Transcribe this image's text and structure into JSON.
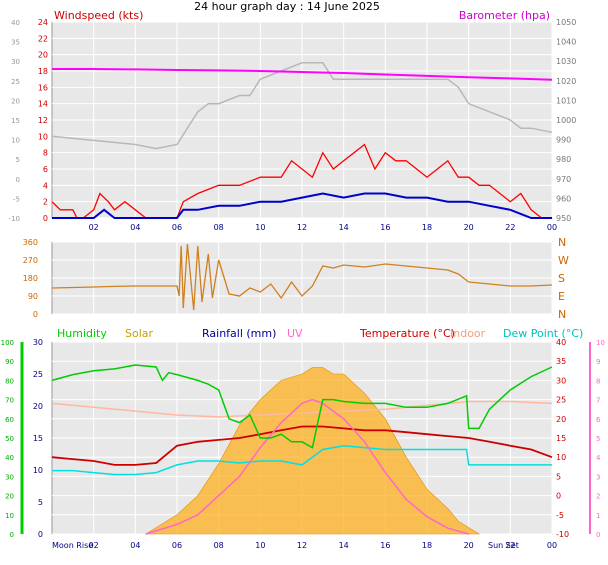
{
  "title": "24 hour graph day : 14 June 2025",
  "colors": {
    "windspeed": "#ff0000",
    "windavg": "#0000cc",
    "barometer": "#ff00ff",
    "outline": "#b8b8b8",
    "winddir": "#d08020",
    "humidity": "#00cc00",
    "solar": "#ffb020",
    "rainfall": "#000099",
    "uv": "#ff66cc",
    "temperature": "#cc0000",
    "indoor": "#ffb8a0",
    "dewpoint": "#00e0e0",
    "grid": "#ffffff",
    "plotbg": "#e8e8e8",
    "marker": "#ff9999"
  },
  "chart_data": [
    {
      "type": "line",
      "name": "wind-barometer",
      "x_ticks": [
        "02",
        "04",
        "06",
        "08",
        "10",
        "12",
        "14",
        "16",
        "18",
        "20",
        "22",
        "00"
      ],
      "xlim": [
        0,
        24
      ],
      "labels": {
        "left": "Windspeed (kts)",
        "right": "Barometer (hpa)"
      },
      "y_left_ticks": [
        "0",
        "2",
        "4",
        "6",
        "8",
        "10",
        "12",
        "14",
        "16",
        "18",
        "20",
        "22",
        "24"
      ],
      "y_left_range": [
        0,
        24
      ],
      "y_outer_ticks": [
        "-10",
        "-5",
        "0",
        "5",
        "10",
        "15",
        "20",
        "25",
        "30",
        "35",
        "40"
      ],
      "y_right_ticks": [
        "950",
        "960",
        "970",
        "980",
        "990",
        "1000",
        "1010",
        "1020",
        "1030",
        "1040",
        "1050"
      ],
      "y_right_range": [
        950,
        1050
      ],
      "series": [
        {
          "key": "wind_gust",
          "x": [
            0,
            0.4,
            1,
            1.2,
            1.5,
            2,
            2.3,
            2.7,
            3,
            3.5,
            4,
            4.5,
            5,
            5.5,
            6,
            6.3,
            7,
            8,
            9,
            10,
            11,
            11.5,
            12,
            12.5,
            13,
            13.5,
            14,
            14.5,
            15,
            15.5,
            16,
            16.5,
            17,
            17.5,
            18,
            18.5,
            19,
            19.5,
            20,
            20.5,
            21,
            21.5,
            22,
            22.5,
            23,
            23.5,
            24
          ],
          "y": [
            2,
            1,
            1,
            0,
            0,
            1,
            3,
            2,
            1,
            2,
            1,
            0,
            0,
            0,
            0,
            2,
            3,
            4,
            4,
            5,
            5,
            7,
            6,
            5,
            8,
            6,
            7,
            8,
            9,
            6,
            8,
            7,
            7,
            6,
            5,
            6,
            7,
            5,
            5,
            4,
            4,
            3,
            2,
            3,
            1,
            0,
            0
          ]
        },
        {
          "key": "wind_avg",
          "x": [
            0,
            1,
            2,
            2.5,
            3,
            4,
            5,
            6,
            6.3,
            7,
            8,
            9,
            10,
            11,
            12,
            13,
            14,
            15,
            16,
            17,
            18,
            19,
            20,
            21,
            22,
            22.5,
            23,
            24
          ],
          "y": [
            0,
            0,
            0,
            1,
            0,
            0,
            0,
            0,
            1,
            1,
            1.5,
            1.5,
            2,
            2,
            2.5,
            3,
            2.5,
            3,
            3,
            2.5,
            2.5,
            2,
            2,
            1.5,
            1,
            0.5,
            0,
            0
          ]
        },
        {
          "key": "barometer",
          "x": [
            0,
            2,
            4,
            6,
            8,
            10,
            12,
            14,
            16,
            18,
            20,
            22,
            24
          ],
          "y": [
            1026,
            1026,
            1025.8,
            1025.5,
            1025.3,
            1025,
            1024.5,
            1024,
            1023.2,
            1022.5,
            1021.8,
            1021.2,
            1020.5
          ]
        },
        {
          "key": "outline",
          "x": [
            0,
            2,
            4,
            5,
            6,
            7,
            7.5,
            8,
            9,
            9.5,
            10,
            11,
            12,
            12.5,
            13,
            13.5,
            14,
            15,
            16,
            17,
            18,
            19,
            19.5,
            20,
            21,
            22,
            22.5,
            23,
            24
          ],
          "y": [
            10,
            9.5,
            9,
            8.5,
            9,
            13,
            14,
            14,
            15,
            15,
            17,
            18,
            19,
            19,
            19,
            17,
            17,
            17,
            17,
            17,
            17,
            17,
            16,
            14,
            13,
            12,
            11,
            11,
            10.5
          ]
        }
      ]
    },
    {
      "type": "line",
      "name": "wind-direction",
      "xlim": [
        0,
        24
      ],
      "y_ticks": [
        "0",
        "90",
        "180",
        "270",
        "360"
      ],
      "ylim": [
        0,
        360
      ],
      "compass": [
        "N",
        "W",
        "S",
        "E",
        "N"
      ],
      "series": [
        {
          "key": "direction",
          "x": [
            0,
            2,
            3,
            4,
            5,
            6,
            6.1,
            6.2,
            6.3,
            6.5,
            6.8,
            7,
            7.2,
            7.5,
            7.7,
            8,
            8.5,
            9,
            9.5,
            10,
            10.5,
            11,
            11.5,
            12,
            12.5,
            13,
            13.5,
            14,
            15,
            16,
            17,
            18,
            19,
            19.5,
            20,
            21,
            22,
            23,
            24
          ],
          "y": [
            130,
            135,
            138,
            140,
            140,
            140,
            90,
            340,
            30,
            350,
            20,
            340,
            60,
            300,
            80,
            270,
            100,
            90,
            130,
            110,
            150,
            80,
            160,
            90,
            140,
            240,
            230,
            245,
            235,
            250,
            240,
            230,
            220,
            200,
            160,
            150,
            140,
            140,
            145
          ]
        }
      ]
    },
    {
      "type": "line",
      "name": "temp-humidity",
      "xlim": [
        0,
        24
      ],
      "x_ticks": [
        "02",
        "04",
        "06",
        "08",
        "10",
        "12",
        "14",
        "16",
        "18",
        "20",
        "22",
        "00"
      ],
      "labels": {
        "humidity": "Humidity",
        "solar": "Solar",
        "rainfall": "Rainfall (mm)",
        "uv": "UV",
        "temperature": "Temperature (°C)",
        "indoor": "Indoor",
        "dewpoint": "Dew Point (°C)"
      },
      "bottom_labels": {
        "moonrise": "Moon Rise",
        "sunset": "Sun Set"
      },
      "y_humidity_ticks": [
        "0",
        "10",
        "20",
        "30",
        "40",
        "50",
        "60",
        "70",
        "80",
        "90",
        "100"
      ],
      "y_rain_ticks": [
        "0",
        "5",
        "10",
        "15",
        "20",
        "25",
        "30"
      ],
      "y_temp_ticks": [
        "-10",
        "-5",
        "0",
        "5",
        "10",
        "15",
        "20",
        "25",
        "30",
        "35",
        "40"
      ],
      "y_uv_ticks": [
        "0",
        "1",
        "2",
        "3",
        "4",
        "5",
        "6",
        "7",
        "8",
        "9",
        "10"
      ],
      "series": [
        {
          "key": "humidity",
          "x": [
            0,
            1,
            2,
            3,
            4,
            5,
            5.3,
            5.6,
            6,
            7,
            7.5,
            8,
            8.5,
            9,
            9.5,
            10,
            10.5,
            11,
            11.5,
            12,
            12.5,
            13,
            13.5,
            14,
            15,
            16,
            17,
            18,
            19,
            19.9,
            20,
            20.5,
            21,
            22,
            23,
            24
          ],
          "y": [
            80,
            83,
            85,
            86,
            88,
            87,
            80,
            84,
            83,
            80,
            78,
            75,
            60,
            58,
            62,
            50,
            50,
            52,
            48,
            48,
            45,
            70,
            70,
            69,
            68,
            68,
            66,
            66,
            68,
            72,
            55,
            55,
            65,
            75,
            82,
            87
          ]
        },
        {
          "key": "temperature",
          "x": [
            0,
            1,
            2,
            3,
            4,
            5,
            6,
            7,
            8,
            9,
            10,
            11,
            12,
            13,
            14,
            15,
            16,
            17,
            18,
            19,
            20,
            21,
            22,
            23,
            24
          ],
          "y": [
            10,
            9.5,
            9,
            8,
            8,
            8.5,
            13,
            14,
            14.5,
            15,
            16,
            17,
            18,
            18,
            17.5,
            17,
            17,
            16.5,
            16,
            15.5,
            15,
            14,
            13,
            12,
            10
          ]
        },
        {
          "key": "dewpoint",
          "x": [
            0,
            1,
            2,
            3,
            4,
            5,
            6,
            7,
            8,
            9,
            10,
            11,
            12,
            13,
            14,
            15,
            16,
            17,
            18,
            19,
            19.9,
            20,
            21,
            22,
            23,
            24
          ],
          "y": [
            6.5,
            6.5,
            6,
            5.5,
            5.5,
            6,
            8,
            9,
            9,
            8.5,
            9,
            9,
            8,
            12,
            13,
            12.5,
            12,
            12,
            12,
            12,
            12,
            8,
            8,
            8,
            8,
            8
          ]
        },
        {
          "key": "indoor",
          "x": [
            0,
            2,
            4,
            6,
            8,
            10,
            12,
            14,
            16,
            18,
            20,
            22,
            24
          ],
          "y": [
            24,
            23,
            22,
            21,
            20.5,
            21,
            21.5,
            22,
            22.5,
            23.5,
            24.5,
            24.5,
            24
          ]
        },
        {
          "key": "solar",
          "x": [
            4.5,
            5,
            6,
            7,
            8,
            9,
            10,
            11,
            12,
            12.5,
            13,
            13.5,
            14,
            15,
            16,
            17,
            18,
            19,
            19.5,
            20,
            20.5
          ],
          "y": [
            0,
            1,
            3,
            6,
            11,
            17,
            21,
            24,
            25,
            26,
            26,
            25,
            25,
            22,
            18,
            12,
            7,
            4,
            2,
            1,
            0
          ]
        },
        {
          "key": "uv",
          "x": [
            4.5,
            6,
            7,
            8,
            9,
            10,
            11,
            12,
            12.5,
            13,
            14,
            15,
            16,
            17,
            18,
            19,
            20
          ],
          "y": [
            0,
            0.5,
            1,
            2,
            3,
            4.5,
            5.8,
            6.8,
            7,
            6.8,
            6,
            4.8,
            3.2,
            1.8,
            0.9,
            0.3,
            0
          ]
        }
      ]
    }
  ]
}
